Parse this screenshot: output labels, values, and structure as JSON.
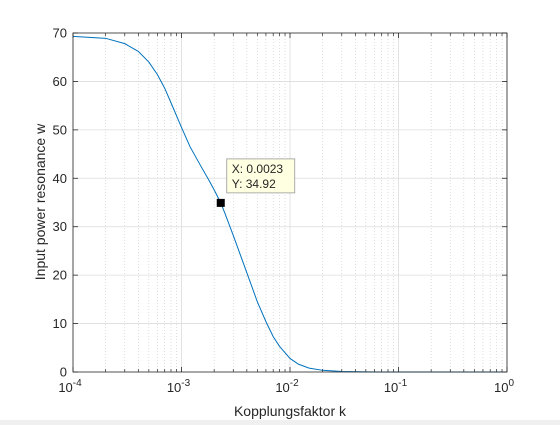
{
  "chart_data": {
    "type": "line",
    "title": "",
    "xlabel": "Kopplungsfaktor k",
    "ylabel": "Input power resonance w",
    "x_scale": "log",
    "xlim": [
      0.0001,
      1
    ],
    "ylim": [
      0,
      70
    ],
    "x_ticks": [
      {
        "base": "10",
        "exp": "-4",
        "value": 0.0001
      },
      {
        "base": "10",
        "exp": "-3",
        "value": 0.001
      },
      {
        "base": "10",
        "exp": "-2",
        "value": 0.01
      },
      {
        "base": "10",
        "exp": "-1",
        "value": 0.1
      },
      {
        "base": "10",
        "exp": "0",
        "value": 1
      }
    ],
    "y_ticks": [
      "0",
      "10",
      "20",
      "30",
      "40",
      "50",
      "60",
      "70"
    ],
    "grid": true,
    "series": [
      {
        "color": "#0072bd",
        "points": [
          [
            0.0001,
            69.3
          ],
          [
            0.0002,
            68.9
          ],
          [
            0.0003,
            67.8
          ],
          [
            0.0004,
            66.2
          ],
          [
            0.0005,
            64.0
          ],
          [
            0.0006,
            61.4
          ],
          [
            0.0007,
            58.6
          ],
          [
            0.0008,
            55.6
          ],
          [
            0.001,
            50.5
          ],
          [
            0.0012,
            46.5
          ],
          [
            0.0015,
            42.6
          ],
          [
            0.0018,
            39.5
          ],
          [
            0.002,
            37.6
          ],
          [
            0.0023,
            34.92
          ],
          [
            0.0025,
            32.9
          ],
          [
            0.003,
            28.2
          ],
          [
            0.004,
            20.5
          ],
          [
            0.005,
            14.5
          ],
          [
            0.006,
            10.4
          ],
          [
            0.007,
            7.3
          ],
          [
            0.008,
            5.3
          ],
          [
            0.01,
            2.8
          ],
          [
            0.012,
            1.6
          ],
          [
            0.015,
            0.8
          ],
          [
            0.02,
            0.35
          ],
          [
            0.03,
            0.1
          ],
          [
            0.05,
            0.02
          ],
          [
            0.1,
            0.0
          ],
          [
            1,
            0.0
          ]
        ]
      }
    ],
    "datatip": {
      "x": 0.0023,
      "y": 34.92,
      "label_x": "X: 0.0023",
      "label_y": "Y: 34.92"
    }
  }
}
